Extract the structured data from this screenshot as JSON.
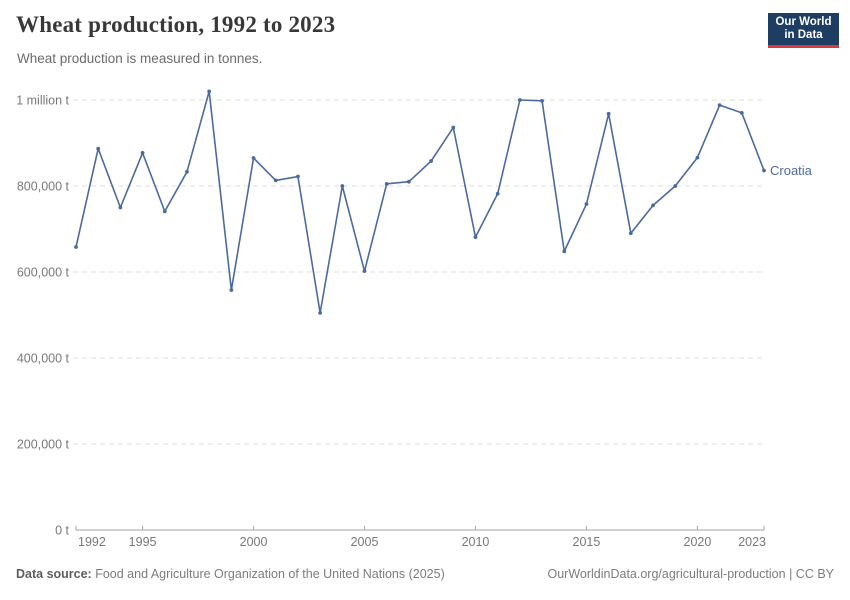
{
  "header": {
    "title": "Wheat production, 1992 to 2023",
    "subtitle": "Wheat production is measured in tonnes.",
    "logo": {
      "line1": "Our World",
      "line2": "in Data"
    }
  },
  "chart_data": {
    "type": "line",
    "title": "Wheat production, 1992 to 2023",
    "ylabel": "",
    "xlabel": "",
    "unit": "tonnes",
    "ylim": [
      0,
      1000000
    ],
    "xlim": [
      1992,
      2023
    ],
    "grid": "horizontal-dashed",
    "legend_position": "end-of-line-label",
    "x": [
      1992,
      1993,
      1994,
      1995,
      1996,
      1997,
      1998,
      1999,
      2000,
      2001,
      2002,
      2003,
      2004,
      2005,
      2006,
      2007,
      2008,
      2009,
      2010,
      2011,
      2012,
      2013,
      2014,
      2015,
      2016,
      2017,
      2018,
      2019,
      2020,
      2021,
      2022,
      2023
    ],
    "series": [
      {
        "name": "Croatia",
        "color": "#4c6a9c",
        "values": [
          658000,
          887000,
          750000,
          877000,
          741000,
          833000,
          1020000,
          558000,
          865000,
          813000,
          822000,
          505000,
          800000,
          602000,
          805000,
          810000,
          858000,
          936000,
          681000,
          782000,
          1000000,
          998000,
          648000,
          758000,
          968000,
          690000,
          755000,
          800000,
          866000,
          988000,
          970000,
          836000
        ]
      }
    ],
    "x_ticks": [
      {
        "value": 1992,
        "label": "1992"
      },
      {
        "value": 1995,
        "label": "1995"
      },
      {
        "value": 2000,
        "label": "2000"
      },
      {
        "value": 2005,
        "label": "2005"
      },
      {
        "value": 2010,
        "label": "2010"
      },
      {
        "value": 2015,
        "label": "2015"
      },
      {
        "value": 2020,
        "label": "2020"
      },
      {
        "value": 2023,
        "label": "2023"
      }
    ],
    "y_ticks": [
      {
        "value": 0,
        "label": "0 t"
      },
      {
        "value": 200000,
        "label": "200,000 t"
      },
      {
        "value": 400000,
        "label": "400,000 t"
      },
      {
        "value": 600000,
        "label": "600,000 t"
      },
      {
        "value": 800000,
        "label": "800,000 t"
      },
      {
        "value": 1000000,
        "label": "1 million t"
      }
    ]
  },
  "footer": {
    "datasource_label": "Data source:",
    "datasource": "Food and Agriculture Organization of the United Nations (2025)",
    "link": "OurWorldinData.org/agricultural-production",
    "separator": "|",
    "license": "CC BY"
  },
  "colors": {
    "line": "#4c6a9c",
    "gridline": "#dedede",
    "axis": "#a3a3a3",
    "tick_label": "#787878",
    "logo_bg": "#1d3d63",
    "logo_red": "#d6393f"
  }
}
